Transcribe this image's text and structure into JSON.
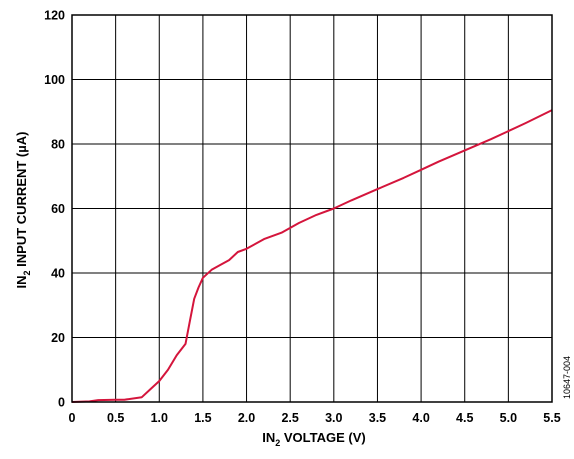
{
  "chart_data": {
    "type": "line",
    "xlabel": {
      "prefix": "IN",
      "sub": "2",
      "suffix": " VOLTAGE (V)"
    },
    "ylabel": {
      "prefix": "IN",
      "sub": "2",
      "suffix": " INPUT CURRENT (µA)"
    },
    "figure_id": "10647-004",
    "xlim": [
      0,
      5.5
    ],
    "ylim": [
      0,
      120
    ],
    "x_ticks": [
      "0",
      "0.5",
      "1.0",
      "1.5",
      "2.0",
      "2.5",
      "3.0",
      "3.5",
      "4.0",
      "4.5",
      "5.0",
      "5.5"
    ],
    "y_ticks": [
      "0",
      "20",
      "40",
      "60",
      "80",
      "100",
      "120"
    ],
    "grid": true,
    "line_color": "#d4153c",
    "series": [
      {
        "x": [
          0,
          0.2,
          0.3,
          0.5,
          0.6,
          0.8,
          0.9,
          1.0,
          1.1,
          1.2,
          1.3,
          1.35,
          1.4,
          1.45,
          1.5,
          1.6,
          1.7,
          1.8,
          1.9,
          2.0,
          2.2,
          2.4,
          2.6,
          2.8,
          3.0,
          3.2,
          3.5,
          3.8,
          4.0,
          4.2,
          4.5,
          4.8,
          5.0,
          5.2,
          5.5
        ],
        "y": [
          0,
          0.2,
          0.6,
          0.7,
          0.7,
          1.5,
          4.0,
          6.5,
          10.0,
          14.5,
          18.0,
          25.0,
          32.0,
          35.5,
          38.5,
          41.0,
          42.5,
          44.0,
          46.5,
          47.5,
          50.5,
          52.5,
          55.5,
          58.0,
          60.0,
          62.5,
          66.0,
          69.5,
          72.0,
          74.5,
          78.0,
          81.5,
          84.0,
          86.5,
          90.5
        ]
      }
    ]
  }
}
